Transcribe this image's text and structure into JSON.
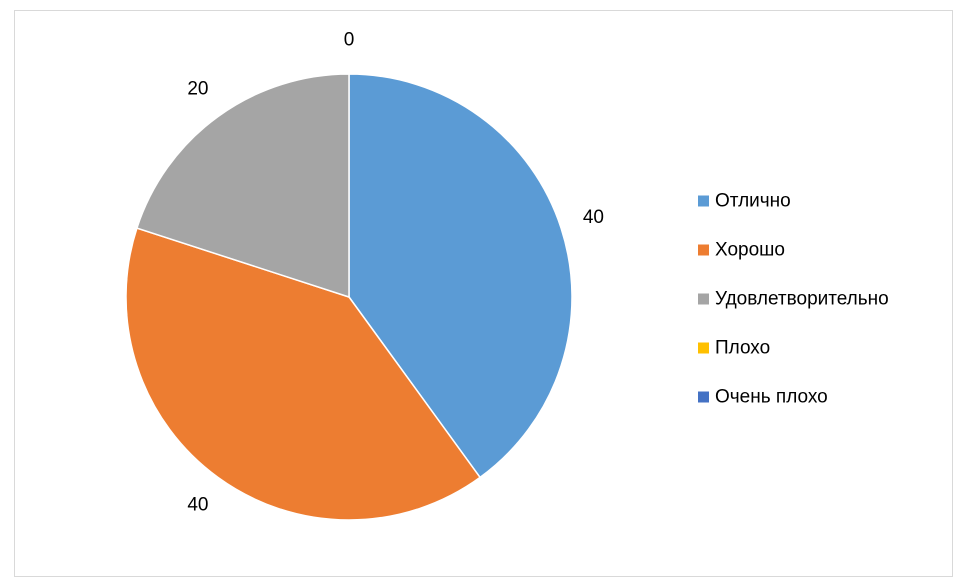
{
  "chart_data": {
    "type": "pie",
    "title": "",
    "categories": [
      "Отлично",
      "Хорошо",
      "Удовлетворительно",
      "Плохо",
      "Очень плохо"
    ],
    "values": [
      40,
      40,
      20,
      0,
      0
    ],
    "data_labels": [
      "40",
      "40",
      "20",
      "0",
      ""
    ],
    "colors": [
      "#5B9BD5",
      "#ED7D31",
      "#A5A5A5",
      "#FFC000",
      "#4472C4"
    ],
    "legend_position": "right",
    "start_angle_deg": 0,
    "direction": "clockwise"
  }
}
